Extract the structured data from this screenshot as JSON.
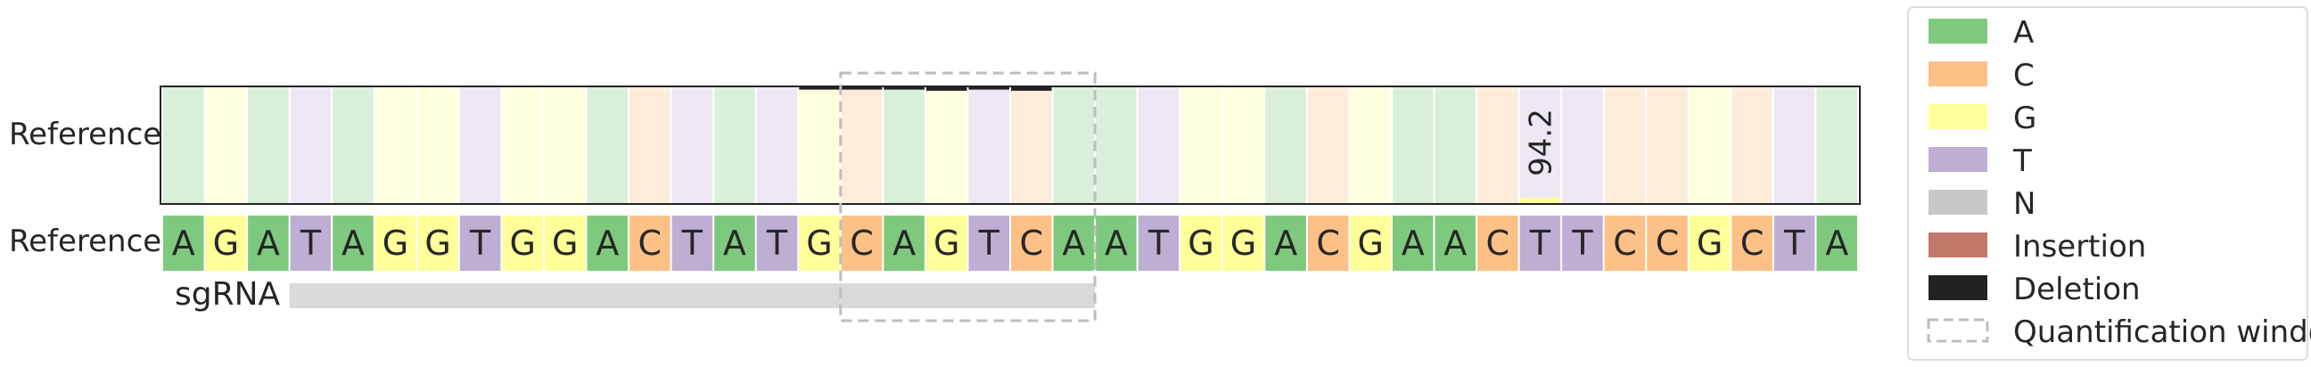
{
  "chart_data": {
    "type": "heatmap",
    "row_labels": [
      "Reference",
      "Reference"
    ],
    "sequence": [
      "A",
      "G",
      "A",
      "T",
      "A",
      "G",
      "G",
      "T",
      "G",
      "G",
      "A",
      "C",
      "T",
      "A",
      "T",
      "G",
      "C",
      "A",
      "G",
      "T",
      "C",
      "A",
      "A",
      "T",
      "G",
      "G",
      "A",
      "C",
      "G",
      "A",
      "A",
      "C",
      "T",
      "T",
      "C",
      "C",
      "G",
      "C",
      "T",
      "A"
    ],
    "sgrna_label": "sgRNA",
    "sgrna_span": [
      3,
      22
    ],
    "quantification_window": [
      17,
      22
    ],
    "deletion_fraction": [
      0,
      0,
      0,
      0,
      0,
      0,
      0,
      0,
      0,
      0,
      0,
      0,
      0,
      0,
      0,
      0.02,
      0.02,
      0.02,
      0.03,
      0.02,
      0.03,
      0,
      0,
      0,
      0,
      0,
      0,
      0,
      0,
      0,
      0,
      0,
      0,
      0,
      0,
      0,
      0,
      0,
      0,
      0
    ],
    "annotation": {
      "position": 33,
      "text": "94.2"
    },
    "colors": {
      "A": "#7fc97f",
      "C": "#fdc086",
      "G": "#ffff99",
      "T": "#beaed4",
      "N": "#c8c8c8",
      "Insertion": "#c1786a",
      "Deletion": "#222222",
      "sgrna_bar": "#d9d9d9",
      "window": "#bdbdbd"
    },
    "legend": [
      {
        "key": "A",
        "label": "A"
      },
      {
        "key": "C",
        "label": "C"
      },
      {
        "key": "G",
        "label": "G"
      },
      {
        "key": "T",
        "label": "T"
      },
      {
        "key": "N",
        "label": "N"
      },
      {
        "key": "Insertion",
        "label": "Insertion"
      },
      {
        "key": "Deletion",
        "label": "Deletion"
      },
      {
        "key": "window",
        "label": "Quantification window",
        "style": "dashed"
      }
    ]
  }
}
